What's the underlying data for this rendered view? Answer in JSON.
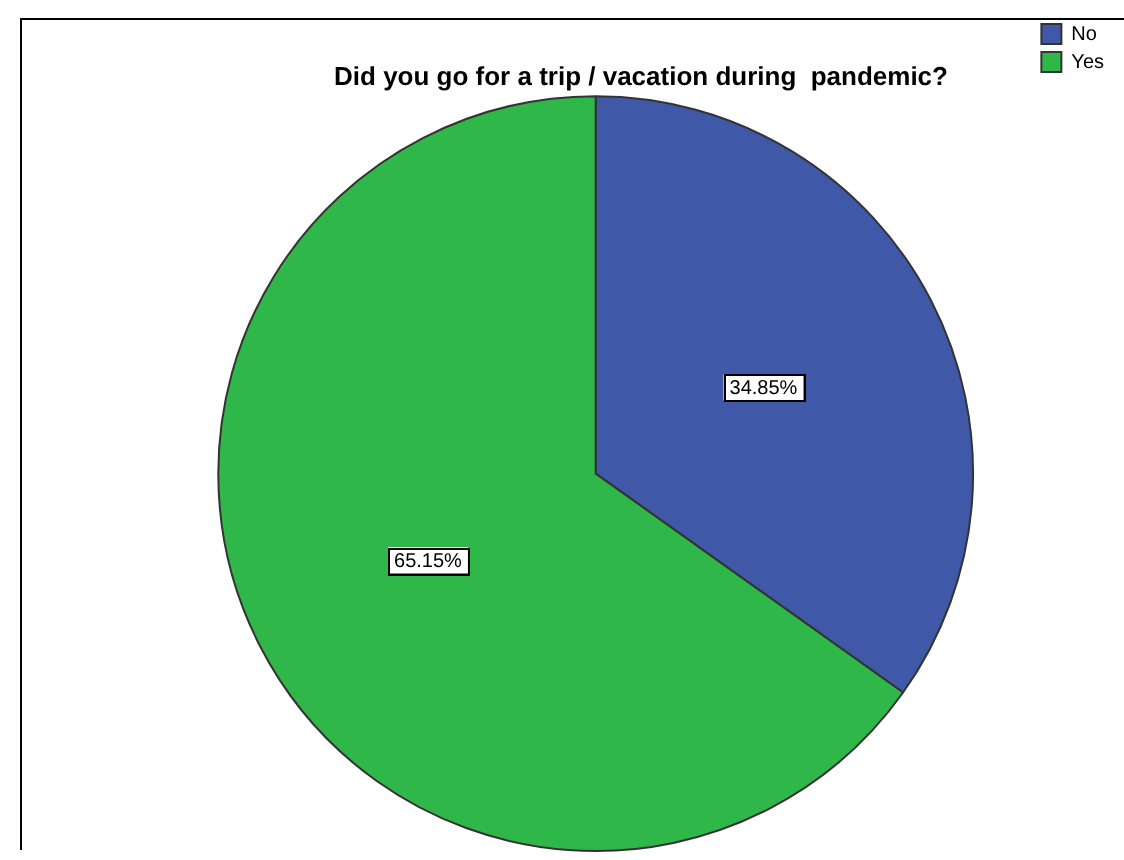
{
  "chart_data": {
    "type": "pie",
    "title": "Did you go for a trip / vacation during  pandemic?",
    "categories": [
      "No",
      "Yes"
    ],
    "values": [
      34.85,
      65.15
    ],
    "colors": [
      "#3f58a8",
      "#2fb74a"
    ],
    "value_labels": [
      "34.85%",
      "65.15%"
    ],
    "legend": "top right"
  }
}
